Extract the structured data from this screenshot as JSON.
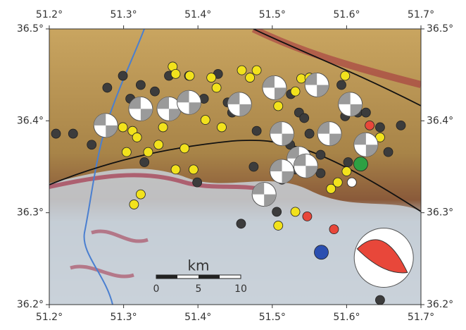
{
  "chart_data": {
    "type": "scatter",
    "xlim": [
      51.2,
      51.7
    ],
    "ylim": [
      36.2,
      36.5
    ],
    "xticks": [
      {
        "value": 51.2,
        "label": "51.2°"
      },
      {
        "value": 51.3,
        "label": "51.3°"
      },
      {
        "value": 51.4,
        "label": "51.4°"
      },
      {
        "value": 51.5,
        "label": "51.5°"
      },
      {
        "value": 51.6,
        "label": "51.6°"
      },
      {
        "value": 51.7,
        "label": "51.7°"
      }
    ],
    "yticks": [
      {
        "value": 36.2,
        "label": "36.2°"
      },
      {
        "value": 36.3,
        "label": "36.3°"
      },
      {
        "value": 36.4,
        "label": "36.4°"
      },
      {
        "value": 36.5,
        "label": "36.5°"
      }
    ],
    "series": [
      {
        "marker": "dot",
        "color": "#3c3c3c",
        "x": [
          51.209,
          51.232,
          51.257,
          51.278,
          51.299,
          51.309,
          51.323,
          51.342,
          51.361,
          51.388,
          51.408,
          51.328,
          51.399,
          51.44,
          51.446,
          51.465,
          51.479,
          51.475,
          51.489,
          51.524,
          51.525,
          51.536,
          51.543,
          51.55,
          51.593,
          51.598,
          51.615,
          51.626,
          51.645,
          51.656,
          51.673,
          51.458,
          51.513,
          51.565,
          51.602,
          51.645,
          51.565,
          51.531,
          51.506,
          51.427
        ],
        "y": [
          36.386,
          36.386,
          36.374,
          36.436,
          36.449,
          36.424,
          36.439,
          36.432,
          36.449,
          36.449,
          36.424,
          36.355,
          36.333,
          36.42,
          36.409,
          36.42,
          36.389,
          36.35,
          36.328,
          36.374,
          36.429,
          36.409,
          36.403,
          36.386,
          36.439,
          36.405,
          36.409,
          36.409,
          36.393,
          36.366,
          36.395,
          36.288,
          36.336,
          36.343,
          36.355,
          36.205,
          36.363,
          36.347,
          36.301,
          36.451
        ]
      },
      {
        "marker": "dot",
        "color": "#f2e21c",
        "x": [
          51.304,
          51.312,
          51.318,
          51.333,
          51.347,
          51.361,
          51.366,
          51.37,
          51.353,
          51.382,
          51.394,
          51.41,
          51.418,
          51.425,
          51.432,
          51.459,
          51.47,
          51.479,
          51.508,
          51.531,
          51.539,
          51.55,
          51.569,
          51.598,
          51.645,
          51.6,
          51.588,
          51.579,
          51.508,
          51.531,
          51.314,
          51.323,
          51.37,
          51.389,
          51.299
        ],
        "y": [
          36.366,
          36.389,
          36.382,
          36.366,
          36.374,
          36.416,
          36.459,
          36.451,
          36.393,
          36.37,
          36.347,
          36.401,
          36.447,
          36.436,
          36.393,
          36.455,
          36.447,
          36.455,
          36.416,
          36.432,
          36.446,
          36.447,
          36.436,
          36.449,
          36.382,
          36.345,
          36.333,
          36.326,
          36.286,
          36.301,
          36.309,
          36.32,
          36.347,
          36.449,
          36.393
        ]
      },
      {
        "marker": "beachball",
        "color": "#9a9a9a",
        "x": [
          51.276,
          51.323,
          51.361,
          51.388,
          51.456,
          51.503,
          51.513,
          51.56,
          51.577,
          51.536,
          51.545,
          51.489,
          51.513,
          51.626,
          51.605
        ],
        "y": [
          36.395,
          36.413,
          36.413,
          36.42,
          36.418,
          36.436,
          36.386,
          36.439,
          36.386,
          36.359,
          36.351,
          36.32,
          36.345,
          36.374,
          36.418
        ]
      },
      {
        "marker": "dot",
        "color": "#e8473a",
        "x": [
          51.631,
          51.547,
          51.583
        ],
        "y": [
          36.395,
          36.296,
          36.282
        ]
      },
      {
        "marker": "dot",
        "color": "#ffffff",
        "x": [
          51.607
        ],
        "y": [
          36.333
        ]
      },
      {
        "marker": "large-dot",
        "color": "#2ea043",
        "x": [
          51.619
        ],
        "y": [
          36.353
        ]
      },
      {
        "marker": "large-dot",
        "color": "#2b4fb0",
        "x": [
          51.566
        ],
        "y": [
          36.257
        ]
      },
      {
        "marker": "large-beachball",
        "color": "#e8473a",
        "x": [
          51.65
        ],
        "y": [
          36.251
        ]
      }
    ],
    "scale_bar": {
      "label": "km",
      "ticks": [
        0,
        5,
        10
      ]
    }
  }
}
